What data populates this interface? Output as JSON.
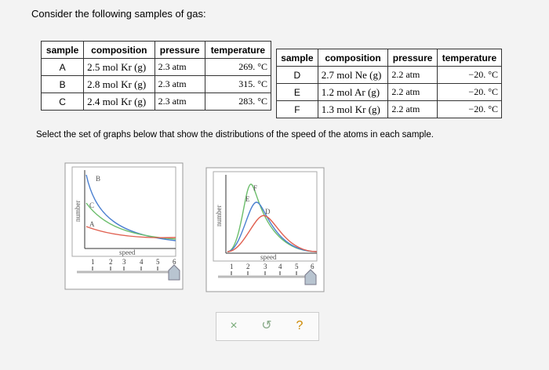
{
  "prompt": "Consider the following samples of gas:",
  "tables": [
    {
      "headers": [
        "sample",
        "composition",
        "pressure",
        "temperature"
      ],
      "rows": [
        [
          "A",
          "2.5 mol Kr (g)",
          "2.3 atm",
          "269. °C"
        ],
        [
          "B",
          "2.8 mol Kr (g)",
          "2.3 atm",
          "315. °C"
        ],
        [
          "C",
          "2.4 mol Kr (g)",
          "2.3 atm",
          "283. °C"
        ]
      ]
    },
    {
      "headers": [
        "sample",
        "composition",
        "pressure",
        "temperature"
      ],
      "rows": [
        [
          "D",
          "2.7 mol Ne (g)",
          "2.2 atm",
          "−20. °C"
        ],
        [
          "E",
          "1.2 mol Ar (g)",
          "2.2 atm",
          "−20. °C"
        ],
        [
          "F",
          "1.3 mol Kr (g)",
          "2.2 atm",
          "−20. °C"
        ]
      ]
    }
  ],
  "instruction": "Select the set of graphs below that show the distributions of the speed of the atoms in each sample.",
  "graphs": [
    {
      "curve_labels": [
        "B",
        "C",
        "A"
      ],
      "y_label": "number",
      "x_label": "speed",
      "slider_ticks": [
        "1",
        "2",
        "3",
        "4",
        "5",
        "6"
      ]
    },
    {
      "curve_labels": [
        "F",
        "E",
        "D"
      ],
      "y_label": "number",
      "x_label": "speed",
      "slider_ticks": [
        "1",
        "2",
        "3",
        "4",
        "5",
        "6"
      ]
    }
  ],
  "buttons": [
    "×",
    "↺",
    "?"
  ]
}
